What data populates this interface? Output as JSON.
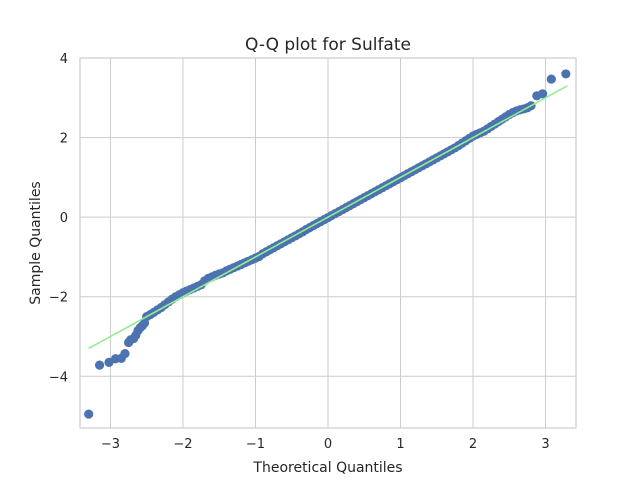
{
  "chart_data": {
    "type": "scatter",
    "title": "Q-Q plot for Sulfate",
    "xlabel": "Theoretical Quantiles",
    "ylabel": "Sample Quantiles",
    "xlim": [
      -3.42,
      3.42
    ],
    "ylim": [
      -5.3,
      4.0
    ],
    "xticks": [
      -3,
      -2,
      -1,
      0,
      1,
      2,
      3
    ],
    "yticks": [
      -4,
      -2,
      0,
      2,
      4
    ],
    "xtick_labels": [
      "−3",
      "−2",
      "−1",
      "0",
      "1",
      "2",
      "3"
    ],
    "ytick_labels": [
      "−4",
      "−2",
      "0",
      "2",
      "4"
    ],
    "grid": true,
    "colors": {
      "points": "#4c72b0",
      "reference_line": "#90ee90",
      "grid": "#cccccc"
    },
    "reference_line": {
      "x": [
        -3.3,
        3.3
      ],
      "y": [
        -3.3,
        3.3
      ]
    },
    "series": [
      {
        "x": [
          -3.3,
          -3.15,
          -3.02,
          -2.93,
          -2.85,
          -2.8,
          -2.75,
          -2.72,
          -2.68,
          -2.65,
          -2.62,
          -2.59,
          -2.56,
          -2.53,
          -2.5,
          -2.45,
          -2.4,
          -2.35,
          -2.3,
          -2.25,
          -2.2,
          -2.15,
          -2.1,
          -2.05,
          -2.0,
          -1.95,
          -1.9,
          -1.85,
          -1.8,
          -1.75,
          -1.7,
          -1.65,
          -1.6,
          -1.55,
          -1.5,
          -1.45,
          -1.4,
          -1.35,
          -1.3,
          -1.25,
          -1.2,
          -1.15,
          -1.1,
          -1.05,
          -1.0,
          -0.95,
          -0.9,
          -0.85,
          -0.8,
          -0.75,
          -0.7,
          -0.65,
          -0.6,
          -0.55,
          -0.5,
          -0.45,
          -0.4,
          -0.35,
          -0.3,
          -0.25,
          -0.2,
          -0.15,
          -0.1,
          -0.05,
          0.0,
          0.05,
          0.1,
          0.15,
          0.2,
          0.25,
          0.3,
          0.35,
          0.4,
          0.45,
          0.5,
          0.55,
          0.6,
          0.65,
          0.7,
          0.75,
          0.8,
          0.85,
          0.9,
          0.95,
          1.0,
          1.05,
          1.1,
          1.15,
          1.2,
          1.25,
          1.3,
          1.35,
          1.4,
          1.45,
          1.5,
          1.55,
          1.6,
          1.65,
          1.7,
          1.75,
          1.8,
          1.85,
          1.9,
          1.95,
          2.0,
          2.05,
          2.1,
          2.15,
          2.2,
          2.25,
          2.3,
          2.35,
          2.4,
          2.45,
          2.5,
          2.55,
          2.6,
          2.65,
          2.7,
          2.75,
          2.8,
          2.88,
          2.96,
          3.08,
          3.28
        ],
        "y": [
          -4.95,
          -3.72,
          -3.65,
          -3.56,
          -3.55,
          -3.43,
          -3.15,
          -3.08,
          -3.05,
          -2.97,
          -2.85,
          -2.78,
          -2.73,
          -2.66,
          -2.5,
          -2.45,
          -2.39,
          -2.33,
          -2.27,
          -2.2,
          -2.13,
          -2.06,
          -2.0,
          -1.95,
          -1.9,
          -1.86,
          -1.82,
          -1.78,
          -1.74,
          -1.7,
          -1.6,
          -1.54,
          -1.5,
          -1.46,
          -1.43,
          -1.4,
          -1.35,
          -1.31,
          -1.27,
          -1.23,
          -1.19,
          -1.15,
          -1.11,
          -1.07,
          -1.03,
          -0.99,
          -0.92,
          -0.87,
          -0.82,
          -0.77,
          -0.72,
          -0.67,
          -0.62,
          -0.57,
          -0.52,
          -0.47,
          -0.42,
          -0.37,
          -0.31,
          -0.26,
          -0.21,
          -0.16,
          -0.11,
          -0.06,
          -0.01,
          0.04,
          0.09,
          0.14,
          0.19,
          0.24,
          0.29,
          0.34,
          0.39,
          0.44,
          0.49,
          0.54,
          0.59,
          0.64,
          0.69,
          0.74,
          0.79,
          0.84,
          0.89,
          0.94,
          0.99,
          1.04,
          1.09,
          1.14,
          1.19,
          1.24,
          1.29,
          1.34,
          1.39,
          1.44,
          1.49,
          1.54,
          1.59,
          1.64,
          1.69,
          1.74,
          1.8,
          1.86,
          1.92,
          1.98,
          2.04,
          2.08,
          2.12,
          2.16,
          2.22,
          2.28,
          2.34,
          2.4,
          2.46,
          2.52,
          2.58,
          2.63,
          2.67,
          2.7,
          2.72,
          2.75,
          2.8,
          3.05,
          3.1,
          3.47,
          3.6
        ]
      }
    ]
  }
}
